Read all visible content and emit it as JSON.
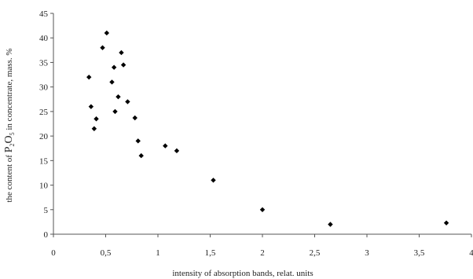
{
  "chart_data": {
    "type": "scatter",
    "xlabel": "intensity of absorption bands, relat. units",
    "ylabel": {
      "before": "the content of ",
      "formula_p": "P",
      "formula_p_sub": "2",
      "formula_o": "O",
      "formula_o_sub": "5",
      "after": " in concentrate, mass. %"
    },
    "xlim": [
      0,
      4
    ],
    "ylim": [
      0,
      45
    ],
    "x_ticks": [
      {
        "value": 0,
        "label": "0"
      },
      {
        "value": 0.5,
        "label": "0,5"
      },
      {
        "value": 1,
        "label": "1"
      },
      {
        "value": 1.5,
        "label": "1,5"
      },
      {
        "value": 2,
        "label": "2"
      },
      {
        "value": 2.5,
        "label": "2,5"
      },
      {
        "value": 3,
        "label": "3"
      },
      {
        "value": 3.5,
        "label": "3,5"
      },
      {
        "value": 4,
        "label": "4"
      }
    ],
    "y_ticks": [
      {
        "value": 0,
        "label": "0"
      },
      {
        "value": 5,
        "label": "5"
      },
      {
        "value": 10,
        "label": "10"
      },
      {
        "value": 15,
        "label": "15"
      },
      {
        "value": 20,
        "label": "20"
      },
      {
        "value": 25,
        "label": "25"
      },
      {
        "value": 30,
        "label": "30"
      },
      {
        "value": 35,
        "label": "35"
      },
      {
        "value": 40,
        "label": "40"
      },
      {
        "value": 45,
        "label": "45"
      }
    ],
    "grid": false,
    "marker": "diamond",
    "marker_color": "#000000",
    "points": [
      {
        "x": 0.34,
        "y": 32
      },
      {
        "x": 0.36,
        "y": 26
      },
      {
        "x": 0.39,
        "y": 21.5
      },
      {
        "x": 0.41,
        "y": 23.5
      },
      {
        "x": 0.47,
        "y": 38
      },
      {
        "x": 0.51,
        "y": 41
      },
      {
        "x": 0.56,
        "y": 31
      },
      {
        "x": 0.58,
        "y": 34
      },
      {
        "x": 0.59,
        "y": 25
      },
      {
        "x": 0.62,
        "y": 28
      },
      {
        "x": 0.65,
        "y": 37
      },
      {
        "x": 0.67,
        "y": 34.5
      },
      {
        "x": 0.71,
        "y": 27
      },
      {
        "x": 0.78,
        "y": 23.7
      },
      {
        "x": 0.81,
        "y": 19
      },
      {
        "x": 0.84,
        "y": 16
      },
      {
        "x": 1.07,
        "y": 18
      },
      {
        "x": 1.18,
        "y": 17
      },
      {
        "x": 1.53,
        "y": 11
      },
      {
        "x": 2.0,
        "y": 5
      },
      {
        "x": 2.65,
        "y": 2
      },
      {
        "x": 3.76,
        "y": 2.3
      }
    ]
  }
}
